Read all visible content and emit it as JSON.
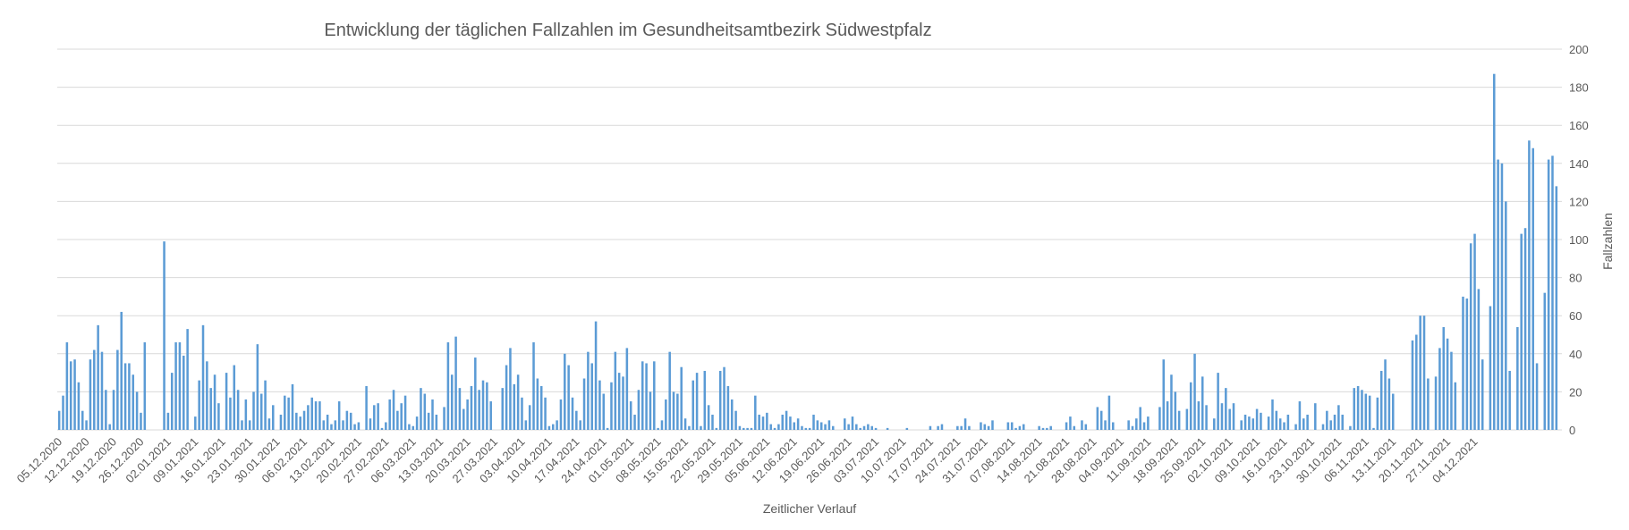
{
  "chart_data": {
    "type": "bar",
    "title": "Entwicklung der täglichen Fallzahlen im Gesundheitsamtbezirk Südwestpfalz",
    "xlabel": "Zeitlicher Verlauf",
    "ylabel": "Fallzahlen",
    "ylim": [
      0,
      200
    ],
    "y_ticks": [
      0,
      20,
      40,
      60,
      80,
      100,
      120,
      140,
      160,
      180,
      200
    ],
    "y_axis_side": "right",
    "grid": true,
    "legend": "none",
    "bar_color": "#5b9bd5",
    "start_date": "05.12.2020",
    "x_tick_labels": [
      "05.12.2020",
      "12.12.2020",
      "19.12.2020",
      "26.12.2020",
      "02.01.2021",
      "09.01.2021",
      "16.01.2021",
      "23.01.2021",
      "30.01.2021",
      "06.02.2021",
      "13.02.2021",
      "20.02.2021",
      "27.02.2021",
      "06.03.2021",
      "13.03.2021",
      "20.03.2021",
      "27.03.2021",
      "03.04.2021",
      "10.04.2021",
      "17.04.2021",
      "24.04.2021",
      "01.05.2021",
      "08.05.2021",
      "15.05.2021",
      "22.05.2021",
      "29.05.2021",
      "05.06.2021",
      "12.06.2021",
      "19.06.2021",
      "26.06.2021",
      "03.07.2021",
      "10.07.2021",
      "17.07.2021",
      "24.07.2021",
      "31.07.2021",
      "07.08.2021",
      "14.08.2021",
      "21.08.2021",
      "28.08.2021",
      "04.09.2021",
      "11.09.2021",
      "18.09.2021",
      "25.09.2021",
      "02.10.2021",
      "09.10.2021",
      "16.10.2021",
      "23.10.2021",
      "30.10.2021",
      "06.11.2021",
      "13.11.2021",
      "20.11.2021",
      "27.11.2021",
      "04.12.2021"
    ],
    "values": [
      10,
      18,
      46,
      36,
      37,
      25,
      10,
      5,
      37,
      42,
      55,
      41,
      21,
      3,
      21,
      42,
      62,
      35,
      35,
      29,
      20,
      9,
      46,
      0,
      0,
      0,
      0,
      99,
      9,
      30,
      46,
      46,
      39,
      53,
      0,
      7,
      26,
      55,
      36,
      22,
      29,
      14,
      0,
      30,
      17,
      34,
      21,
      5,
      16,
      5,
      20,
      45,
      19,
      26,
      6,
      13,
      0,
      8,
      18,
      17,
      24,
      9,
      7,
      10,
      13,
      17,
      15,
      15,
      5,
      8,
      3,
      5,
      15,
      5,
      10,
      9,
      3,
      4,
      0,
      23,
      6,
      13,
      14,
      1,
      4,
      16,
      21,
      10,
      14,
      18,
      3,
      2,
      7,
      22,
      19,
      9,
      16,
      8,
      0,
      12,
      46,
      29,
      49,
      22,
      11,
      16,
      23,
      38,
      21,
      26,
      25,
      15,
      0,
      0,
      22,
      34,
      43,
      24,
      29,
      17,
      5,
      13,
      46,
      27,
      23,
      17,
      2,
      3,
      5,
      16,
      40,
      34,
      17,
      10,
      5,
      27,
      41,
      35,
      57,
      26,
      19,
      1,
      25,
      41,
      30,
      28,
      43,
      15,
      8,
      21,
      36,
      35,
      20,
      36,
      1,
      5,
      16,
      41,
      20,
      19,
      33,
      6,
      2,
      26,
      30,
      2,
      31,
      13,
      8,
      1,
      31,
      33,
      23,
      16,
      10,
      2,
      1,
      1,
      1,
      18,
      8,
      7,
      9,
      3,
      1,
      3,
      8,
      10,
      7,
      4,
      6,
      2,
      1,
      1,
      8,
      5,
      4,
      3,
      5,
      2,
      0,
      0,
      6,
      3,
      7,
      3,
      1,
      2,
      3,
      2,
      1,
      0,
      0,
      1,
      0,
      0,
      0,
      0,
      1,
      0,
      0,
      0,
      0,
      0,
      2,
      0,
      2,
      3,
      0,
      0,
      0,
      2,
      2,
      6,
      2,
      0,
      0,
      4,
      3,
      2,
      5,
      0,
      0,
      0,
      4,
      4,
      1,
      2,
      3,
      0,
      0,
      0,
      2,
      1,
      1,
      2,
      0,
      0,
      0,
      4,
      7,
      2,
      0,
      5,
      3,
      0,
      0,
      12,
      10,
      5,
      18,
      4,
      0,
      0,
      0,
      5,
      2,
      6,
      12,
      4,
      7,
      0,
      0,
      12,
      37,
      15,
      29,
      20,
      10,
      0,
      11,
      25,
      40,
      15,
      28,
      13,
      0,
      6,
      30,
      14,
      22,
      11,
      14,
      0,
      5,
      8,
      7,
      6,
      11,
      9,
      0,
      7,
      16,
      10,
      6,
      4,
      8,
      0,
      3,
      15,
      6,
      8,
      0,
      14,
      0,
      3,
      10,
      5,
      8,
      13,
      8,
      0,
      2,
      22,
      23,
      21,
      19,
      18,
      1,
      17,
      31,
      37,
      27,
      19,
      0,
      0,
      0,
      0,
      47,
      50,
      60,
      60,
      27,
      0,
      28,
      43,
      54,
      48,
      41,
      25,
      0,
      70,
      69,
      98,
      103,
      74,
      37,
      0,
      65,
      187,
      142,
      140,
      120,
      31,
      0,
      54,
      103,
      106,
      152,
      148,
      35,
      0,
      72,
      142,
      144,
      128
    ]
  }
}
